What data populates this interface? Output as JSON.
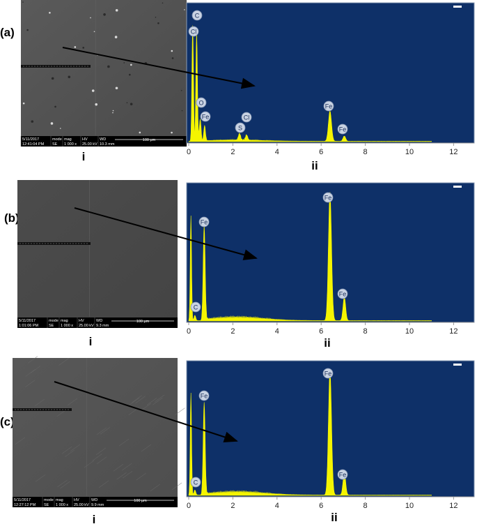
{
  "panels": [
    {
      "label": "(a)",
      "sem": {
        "date": "5/11/2017",
        "time": "12:41:04 PM",
        "mode_header": "mode",
        "mode": "SE",
        "mag_header": "mag",
        "mag": "1 000 x",
        "hv_header": "HV",
        "hv": "25.00 kV",
        "wd_header": "WD",
        "wd": "10.3 mm",
        "scale": "100 μm"
      },
      "sem_caption": "i",
      "spectrum": {
        "xticks": [
          0,
          2,
          4,
          6,
          8,
          10,
          12
        ],
        "peaks": [
          "C",
          "Cl",
          "O",
          "Fe",
          "S",
          "Cl",
          "Fe",
          "Fe"
        ]
      },
      "spectrum_caption": "ii"
    },
    {
      "label": "(b)",
      "sem": {
        "date": "5/11/2017",
        "time": "1:01:06 PM",
        "mode_header": "mode",
        "mode": "SE",
        "mag_header": "mag",
        "mag": "1 000 x",
        "hv_header": "HV",
        "hv": "25.00 kV",
        "wd_header": "WD",
        "wd": "9.3 mm",
        "scale": "100 μm"
      },
      "sem_caption": "i",
      "spectrum": {
        "xticks": [
          0,
          2,
          4,
          6,
          8,
          10,
          12
        ],
        "peaks": [
          "Fe",
          "C",
          "Fe",
          "Fe"
        ]
      },
      "spectrum_caption": "ii"
    },
    {
      "label": "(c)",
      "sem": {
        "date": "5/11/2017",
        "time": "12:27:12 PM",
        "mode_header": "mode",
        "mode": "SE",
        "mag_header": "mag",
        "mag": "1 000 x",
        "hv_header": "HV",
        "hv": "25.00 kV",
        "wd_header": "WD",
        "wd": "9.9 mm",
        "scale": "100 μm"
      },
      "sem_caption": "i",
      "spectrum": {
        "xticks": [
          0,
          2,
          4,
          6,
          8,
          10,
          12
        ],
        "peaks": [
          "Fe",
          "C",
          "Fe",
          "Fe"
        ]
      },
      "spectrum_caption": "ii"
    }
  ]
}
